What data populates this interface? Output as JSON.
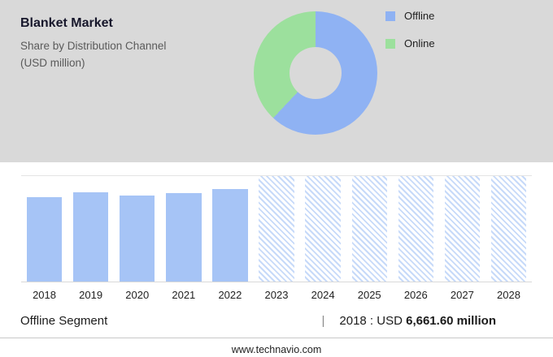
{
  "header": {
    "title": "Blanket Market",
    "subtitle_line1": "Share by Distribution Channel",
    "subtitle_line2": "(USD million)"
  },
  "legend": [
    {
      "label": "Offline",
      "color": "#8fb2f3"
    },
    {
      "label": "Online",
      "color": "#9ce09d"
    }
  ],
  "donut": {
    "segments": [
      {
        "label": "Offline",
        "value": 62,
        "color": "#8fb2f3"
      },
      {
        "label": "Online",
        "value": 38,
        "color": "#9ce09d"
      }
    ]
  },
  "chart_data": {
    "type": "bar",
    "title": "Blanket Market — Share by Distribution Channel (USD million)",
    "categories": [
      "2018",
      "2019",
      "2020",
      "2021",
      "2022",
      "2023",
      "2024",
      "2025",
      "2026",
      "2027",
      "2028"
    ],
    "series": [
      {
        "name": "Offline segment (USD million)",
        "values": [
          6661.6,
          7000,
          6770,
          6950,
          7270,
          null,
          null,
          null,
          null,
          null,
          null
        ]
      }
    ],
    "forecast_years": [
      "2023",
      "2024",
      "2025",
      "2026",
      "2027",
      "2028"
    ],
    "xlabel": "",
    "ylabel": "USD million",
    "ylim": [
      0,
      8300
    ],
    "grid": false,
    "legend_position": "top-right",
    "annotation": "2018 : USD 6,661.60 million",
    "bar_color": "#a6c4f6",
    "forecast_style": "diagonal-hatch"
  },
  "infobar": {
    "segment_label": "Offline Segment",
    "separator": "|",
    "stat_prefix": "2018 : USD ",
    "stat_value": "6,661.60 million"
  },
  "footer": {
    "website": "www.technavio.com"
  }
}
